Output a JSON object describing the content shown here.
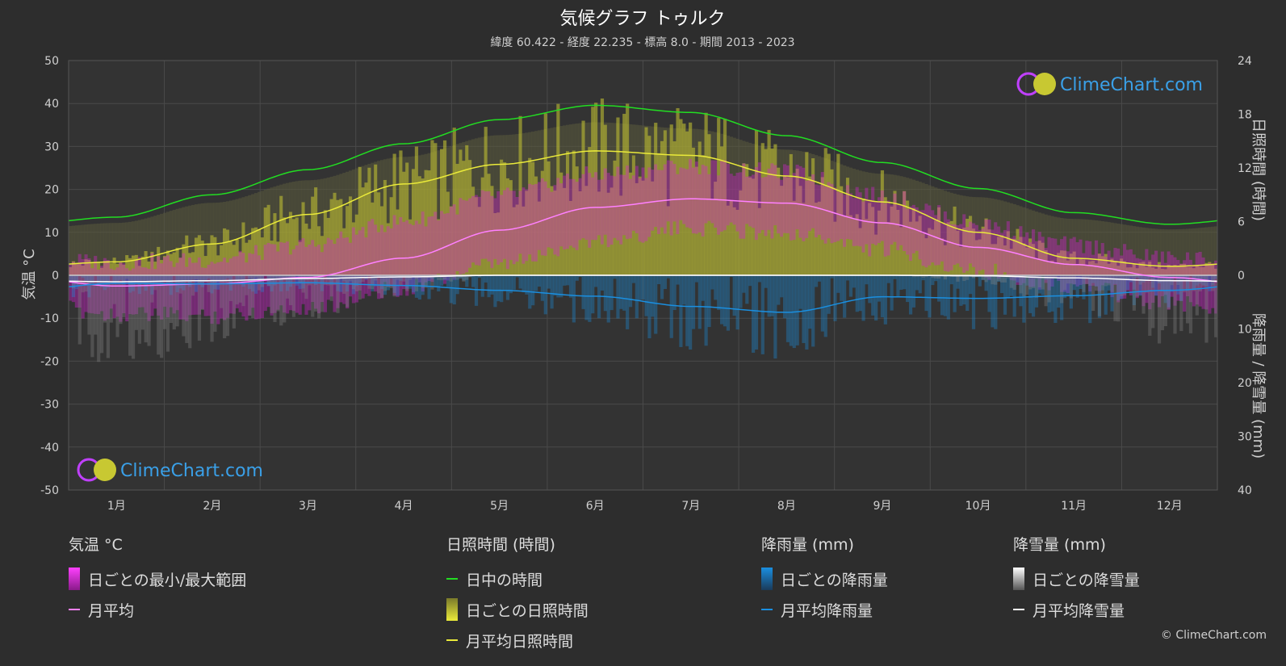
{
  "title": "気候グラフ トゥルク",
  "subtitle": "緯度 60.422 - 経度 22.235 - 標高 8.0 - 期間 2013 - 2023",
  "brand": "ClimeChart.com",
  "copyright": "© ClimeChart.com",
  "colors": {
    "background": "#2d2d2d",
    "temp_range": "#d81fd6",
    "temp_avg": "#ff80ff",
    "daylight": "#22dd22",
    "sunshine_fill": "#c8c832",
    "sunshine_avg": "#eaea3a",
    "rain": "#1a8fe0",
    "snow": "#dcdcdc"
  },
  "chart_data": {
    "type": "line",
    "x_categories": [
      "1月",
      "2月",
      "3月",
      "4月",
      "5月",
      "6月",
      "7月",
      "8月",
      "9月",
      "10月",
      "11月",
      "12月"
    ],
    "left_axis": {
      "label": "気温 °C",
      "range": [
        -50,
        50
      ],
      "ticks": [
        50,
        40,
        30,
        20,
        10,
        0,
        -10,
        -20,
        -30,
        -40,
        -50
      ]
    },
    "right_axis_top": {
      "label": "日照時間 (時間)",
      "range": [
        0,
        24
      ],
      "ticks": [
        24,
        18,
        12,
        6,
        0
      ]
    },
    "right_axis_bottom": {
      "label": "降雨量 / 降雪量 (mm)",
      "range": [
        0,
        40
      ],
      "ticks": [
        10,
        20,
        30,
        40
      ]
    },
    "grid": true,
    "series": [
      {
        "name": "日中の時間",
        "axis": "sun",
        "values": [
          6.5,
          9.0,
          11.8,
          14.7,
          17.4,
          19.0,
          18.2,
          15.6,
          12.6,
          9.7,
          7.0,
          5.7
        ]
      },
      {
        "name": "月平均日照時間",
        "axis": "sun",
        "values": [
          1.5,
          3.5,
          6.8,
          10.2,
          12.4,
          13.9,
          13.4,
          11.1,
          8.2,
          4.8,
          1.9,
          1.0
        ]
      },
      {
        "name": "月平均",
        "axis": "temp",
        "values": [
          -2.5,
          -2.0,
          -0.5,
          4.0,
          10.5,
          15.8,
          17.8,
          16.8,
          12.2,
          6.5,
          2.5,
          -0.5
        ]
      },
      {
        "name": "月平均降雨量",
        "axis": "precip",
        "values": [
          1.5,
          1.6,
          1.4,
          1.9,
          2.8,
          3.9,
          5.8,
          6.9,
          4.0,
          4.3,
          3.8,
          2.8
        ]
      },
      {
        "name": "月平均降雪量",
        "axis": "precip",
        "values": [
          1.2,
          1.0,
          0.6,
          0.3,
          0.0,
          0.0,
          0.0,
          0.0,
          0.0,
          0.1,
          0.5,
          1.0
        ]
      }
    ],
    "temp_range_band": {
      "name": "日ごとの最小/最大範囲",
      "min": [
        -7.0,
        -7.5,
        -5.5,
        -1.0,
        4.5,
        10.0,
        13.0,
        12.0,
        8.0,
        3.0,
        -0.5,
        -4.5
      ],
      "max": [
        1.0,
        1.5,
        5.0,
        10.5,
        16.5,
        21.5,
        23.5,
        22.0,
        16.5,
        10.0,
        5.0,
        2.0
      ]
    }
  },
  "legend": {
    "temp": {
      "heading": "気温 °C",
      "items": [
        "日ごとの最小/最大範囲",
        "月平均"
      ]
    },
    "sun": {
      "heading": "日照時間 (時間)",
      "items": [
        "日中の時間",
        "日ごとの日照時間",
        "月平均日照時間"
      ]
    },
    "rain": {
      "heading": "降雨量 (mm)",
      "items": [
        "日ごとの降雨量",
        "月平均降雨量"
      ]
    },
    "snow": {
      "heading": "降雪量 (mm)",
      "items": [
        "日ごとの降雪量",
        "月平均降雪量"
      ]
    }
  }
}
